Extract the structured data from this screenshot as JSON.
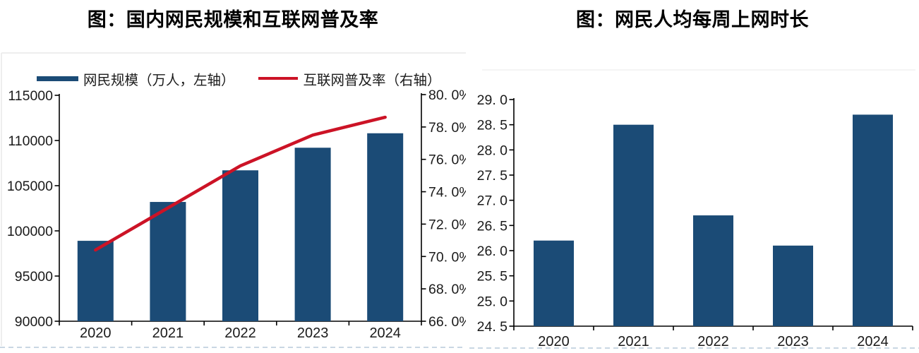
{
  "page": {
    "background": "#ffffff"
  },
  "chart_data": [
    {
      "type": "bar+line",
      "title": "图：国内网民规模和互联网普及率",
      "categories": [
        "2020",
        "2021",
        "2022",
        "2023",
        "2024"
      ],
      "series": [
        {
          "name": "网民规模（万人，左轴）",
          "type": "bar",
          "axis": "left",
          "values": [
            98900,
            103200,
            106700,
            109200,
            110800
          ],
          "color": "#1B4B76"
        },
        {
          "name": "互联网普及率（右轴）",
          "type": "line",
          "axis": "right",
          "values": [
            70.4,
            73.0,
            75.6,
            77.5,
            78.6
          ],
          "color": "#CC1326"
        }
      ],
      "left_axis": {
        "min": 90000,
        "max": 115000,
        "tick_labels": [
          "115000",
          "110000",
          "105000",
          "100000",
          "95000",
          "90000"
        ]
      },
      "right_axis": {
        "min": 66.0,
        "max": 80.0,
        "tick_labels": [
          "80. 0%",
          "78. 0%",
          "76. 0%",
          "74. 0%",
          "72. 0%",
          "70. 0%",
          "68. 0%",
          "66. 0%"
        ]
      },
      "legend_position": "top",
      "grid": "off"
    },
    {
      "type": "bar",
      "title": "图：网民人均每周上网时长",
      "categories": [
        "2020",
        "2021",
        "2022",
        "2023",
        "2024"
      ],
      "values": [
        26.2,
        28.5,
        26.7,
        26.1,
        28.7
      ],
      "y_axis": {
        "min": 24.5,
        "max": 29.0,
        "tick_labels": [
          "29. 0",
          "28. 5",
          "28. 0",
          "27. 5",
          "27. 0",
          "26. 5",
          "26. 0",
          "25. 5",
          "25. 0",
          "24. 5"
        ]
      },
      "bar_color": "#1B4B76",
      "xlabel": "",
      "ylabel": "",
      "grid": "off"
    }
  ],
  "decor": {
    "axis_color": "#000000",
    "tick_text_color": "#1a1a1a",
    "faint_border_color": "#e9e9e9",
    "dashed_border_color": "#c9d7e3"
  }
}
